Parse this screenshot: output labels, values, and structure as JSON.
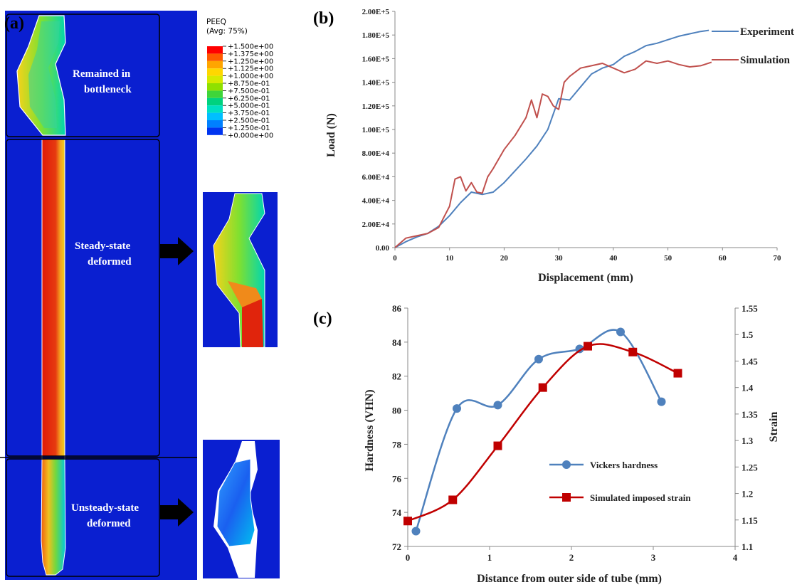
{
  "panel_a": {
    "label": "(a)",
    "legend": {
      "title_line1": "PEEQ",
      "title_line2": "(Avg: 75%)",
      "entries": [
        {
          "value": "+1.500e+00",
          "color": "#ff0000"
        },
        {
          "value": "+1.375e+00",
          "color": "#ff5a00"
        },
        {
          "value": "+1.250e+00",
          "color": "#ffa500"
        },
        {
          "value": "+1.125e+00",
          "color": "#ffd700"
        },
        {
          "value": "+1.000e+00",
          "color": "#d6ea00"
        },
        {
          "value": "+8.750e-01",
          "color": "#8fe000"
        },
        {
          "value": "+7.500e-01",
          "color": "#3fd53a"
        },
        {
          "value": "+6.250e-01",
          "color": "#00d27f"
        },
        {
          "value": "+5.000e-01",
          "color": "#00e0c2"
        },
        {
          "value": "+3.750e-01",
          "color": "#00bfff"
        },
        {
          "value": "+2.500e-01",
          "color": "#0080ff"
        },
        {
          "value": "+1.250e-01",
          "color": "#0035f0"
        },
        {
          "value": "+0.000e+00",
          "color": "#0000cc"
        }
      ]
    },
    "regions": [
      {
        "line1": "Remained in",
        "line2": "bottleneck"
      },
      {
        "line1": "Steady-state",
        "line2": "deformed"
      },
      {
        "line1": "Unsteady-state",
        "line2": "deformed"
      }
    ],
    "colors": {
      "background": "#0a1fd0",
      "strain_high": "#dd1a08",
      "strain_mid": "#f2c41a"
    }
  },
  "chart_data": [
    {
      "panel": "(b)",
      "type": "line",
      "xlabel": "Displacement (mm)",
      "ylabel": "Load (N)",
      "xlim": [
        0,
        70
      ],
      "ylim": [
        0,
        200000
      ],
      "xticks": [
        "0",
        "10",
        "20",
        "30",
        "40",
        "50",
        "60",
        "70"
      ],
      "yticks": [
        "0.00",
        "2.00E+4",
        "4.00E+4",
        "6.00E+4",
        "8.00E+4",
        "1.00E+5",
        "1.20E+5",
        "1.40E+5",
        "1.60E+5",
        "1.80E+5",
        "2.00E+5"
      ],
      "grid": false,
      "series": [
        {
          "name": "Experiment",
          "color": "#4f81bd",
          "x": [
            0,
            2,
            4,
            6,
            8,
            10,
            12,
            14,
            16,
            18,
            20,
            22,
            24,
            26,
            28,
            30,
            32,
            34,
            36,
            38,
            40,
            42,
            44,
            46,
            48,
            50,
            52,
            54,
            56,
            57.5
          ],
          "y": [
            0,
            5000,
            9000,
            12000,
            18000,
            27000,
            38000,
            47000,
            45000,
            47000,
            55000,
            65000,
            75000,
            86000,
            100000,
            126000,
            125000,
            136000,
            147000,
            152000,
            155000,
            162000,
            166000,
            171000,
            173000,
            176000,
            179000,
            181000,
            183000,
            184000
          ]
        },
        {
          "name": "Simulation",
          "color": "#c0504d",
          "x": [
            0,
            2,
            4,
            6,
            8,
            9,
            10,
            11,
            12,
            13,
            14,
            15,
            16,
            17,
            18,
            20,
            22,
            24,
            25,
            26,
            27,
            28,
            29,
            30,
            31,
            32,
            34,
            36,
            38,
            40,
            42,
            44,
            46,
            48,
            50,
            52,
            54,
            56,
            58
          ],
          "y": [
            0,
            8000,
            10000,
            12000,
            17000,
            26000,
            35000,
            58000,
            60000,
            48000,
            55000,
            47000,
            46000,
            60000,
            67000,
            83000,
            95000,
            110000,
            125000,
            110000,
            130000,
            128000,
            120000,
            117000,
            140000,
            145000,
            152000,
            154000,
            156000,
            152000,
            148000,
            151000,
            158000,
            156000,
            158000,
            155000,
            153000,
            154000,
            157000
          ]
        }
      ]
    },
    {
      "panel": "(c)",
      "type": "line",
      "xlabel": "Distance from outer side of tube (mm)",
      "ylabel": "Hardness (VHN)",
      "y2label": "Strain",
      "xlim": [
        0,
        4
      ],
      "ylim": [
        72,
        86
      ],
      "y2lim": [
        1.1,
        1.55
      ],
      "xticks": [
        "0",
        "1",
        "2",
        "3",
        "4"
      ],
      "yticks": [
        "72",
        "74",
        "76",
        "78",
        "80",
        "82",
        "84",
        "86"
      ],
      "y2ticks": [
        "1.1",
        "1.15",
        "1.2",
        "1.25",
        "1.3",
        "1.35",
        "1.4",
        "1.45",
        "1.5",
        "1.55"
      ],
      "grid": false,
      "legend_position": "center-right",
      "series": [
        {
          "name": "Vickers hardness",
          "axis": "left",
          "color": "#4f81bd",
          "marker": "circle",
          "x": [
            0.1,
            0.6,
            1.1,
            1.6,
            2.1,
            2.6,
            3.1
          ],
          "y": [
            72.9,
            80.1,
            80.3,
            83.0,
            83.6,
            84.6,
            80.5
          ]
        },
        {
          "name": "Simulated imposed strain",
          "axis": "right",
          "color": "#c00000",
          "marker": "square",
          "x": [
            0.0,
            0.55,
            1.1,
            1.65,
            2.2,
            2.75,
            3.3
          ],
          "y": [
            1.148,
            1.188,
            1.29,
            1.4,
            1.478,
            1.467,
            1.427
          ]
        }
      ]
    }
  ]
}
